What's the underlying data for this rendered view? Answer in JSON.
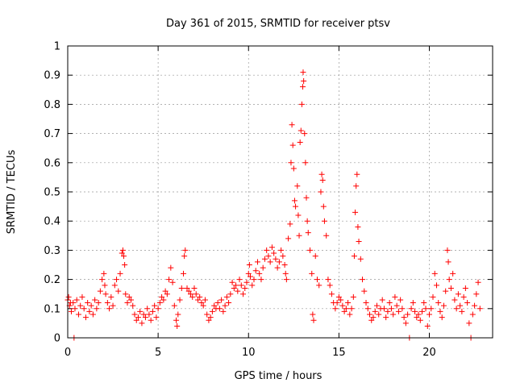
{
  "chart_data": {
    "type": "scatter",
    "title": "Day 361 of 2015, SRMTID for receiver ptsv",
    "xlabel": "GPS time / hours",
    "ylabel": "SRMTID / TECUs",
    "xlim": [
      0,
      23.5
    ],
    "ylim": [
      0,
      1
    ],
    "x_ticks": [
      0,
      5,
      10,
      15,
      20
    ],
    "x_tick_labels": [
      "0",
      "5",
      "10",
      "15",
      "20"
    ],
    "y_ticks": [
      0,
      0.1,
      0.2,
      0.3,
      0.4,
      0.5,
      0.6,
      0.7,
      0.8,
      0.9,
      1
    ],
    "y_tick_labels": [
      "0",
      "0.1",
      "0.2",
      "0.3",
      "0.4",
      "0.5",
      "0.6",
      "0.7",
      "0.8",
      "0.9",
      "1"
    ],
    "grid": true,
    "marker": "+",
    "marker_color": "#ff0000",
    "series": [
      {
        "name": "SRMTID",
        "points": [
          [
            0.0,
            0.13
          ],
          [
            0.05,
            0.14
          ],
          [
            0.1,
            0.11
          ],
          [
            0.15,
            0.12
          ],
          [
            0.2,
            0.09
          ],
          [
            0.3,
            0.12
          ],
          [
            0.35,
            0.0
          ],
          [
            0.4,
            0.1
          ],
          [
            0.5,
            0.13
          ],
          [
            0.6,
            0.08
          ],
          [
            0.7,
            0.11
          ],
          [
            0.8,
            0.14
          ],
          [
            0.9,
            0.1
          ],
          [
            1.0,
            0.07
          ],
          [
            1.1,
            0.12
          ],
          [
            1.2,
            0.09
          ],
          [
            1.3,
            0.11
          ],
          [
            1.4,
            0.08
          ],
          [
            1.5,
            0.13
          ],
          [
            1.6,
            0.1
          ],
          [
            1.7,
            0.12
          ],
          [
            1.8,
            0.16
          ],
          [
            1.9,
            0.2
          ],
          [
            2.0,
            0.22
          ],
          [
            2.05,
            0.18
          ],
          [
            2.1,
            0.15
          ],
          [
            2.2,
            0.12
          ],
          [
            2.3,
            0.1
          ],
          [
            2.4,
            0.14
          ],
          [
            2.5,
            0.11
          ],
          [
            2.6,
            0.18
          ],
          [
            2.7,
            0.2
          ],
          [
            2.8,
            0.16
          ],
          [
            2.9,
            0.22
          ],
          [
            3.0,
            0.29
          ],
          [
            3.05,
            0.3
          ],
          [
            3.1,
            0.28
          ],
          [
            3.15,
            0.25
          ],
          [
            3.2,
            0.15
          ],
          [
            3.3,
            0.12
          ],
          [
            3.4,
            0.14
          ],
          [
            3.5,
            0.13
          ],
          [
            3.6,
            0.11
          ],
          [
            3.7,
            0.08
          ],
          [
            3.8,
            0.06
          ],
          [
            3.9,
            0.07
          ],
          [
            4.0,
            0.09
          ],
          [
            4.1,
            0.05
          ],
          [
            4.2,
            0.08
          ],
          [
            4.3,
            0.07
          ],
          [
            4.4,
            0.1
          ],
          [
            4.5,
            0.08
          ],
          [
            4.6,
            0.06
          ],
          [
            4.7,
            0.09
          ],
          [
            4.8,
            0.11
          ],
          [
            4.9,
            0.07
          ],
          [
            5.0,
            0.1
          ],
          [
            5.1,
            0.12
          ],
          [
            5.2,
            0.14
          ],
          [
            5.3,
            0.13
          ],
          [
            5.4,
            0.16
          ],
          [
            5.5,
            0.15
          ],
          [
            5.6,
            0.2
          ],
          [
            5.7,
            0.24
          ],
          [
            5.8,
            0.19
          ],
          [
            5.9,
            0.11
          ],
          [
            6.0,
            0.06
          ],
          [
            6.05,
            0.04
          ],
          [
            6.1,
            0.08
          ],
          [
            6.2,
            0.13
          ],
          [
            6.3,
            0.17
          ],
          [
            6.4,
            0.22
          ],
          [
            6.45,
            0.28
          ],
          [
            6.5,
            0.3
          ],
          [
            6.6,
            0.17
          ],
          [
            6.7,
            0.16
          ],
          [
            6.8,
            0.15
          ],
          [
            6.9,
            0.14
          ],
          [
            7.0,
            0.17
          ],
          [
            7.1,
            0.15
          ],
          [
            7.2,
            0.13
          ],
          [
            7.3,
            0.14
          ],
          [
            7.4,
            0.12
          ],
          [
            7.5,
            0.11
          ],
          [
            7.6,
            0.13
          ],
          [
            7.7,
            0.08
          ],
          [
            7.8,
            0.06
          ],
          [
            7.9,
            0.07
          ],
          [
            8.0,
            0.09
          ],
          [
            8.1,
            0.11
          ],
          [
            8.2,
            0.1
          ],
          [
            8.3,
            0.12
          ],
          [
            8.4,
            0.1
          ],
          [
            8.5,
            0.13
          ],
          [
            8.6,
            0.09
          ],
          [
            8.7,
            0.11
          ],
          [
            8.8,
            0.14
          ],
          [
            8.9,
            0.12
          ],
          [
            9.0,
            0.15
          ],
          [
            9.1,
            0.19
          ],
          [
            9.2,
            0.17
          ],
          [
            9.3,
            0.18
          ],
          [
            9.4,
            0.16
          ],
          [
            9.5,
            0.2
          ],
          [
            9.6,
            0.18
          ],
          [
            9.7,
            0.15
          ],
          [
            9.8,
            0.17
          ],
          [
            9.9,
            0.19
          ],
          [
            10.0,
            0.22
          ],
          [
            10.05,
            0.25
          ],
          [
            10.1,
            0.21
          ],
          [
            10.2,
            0.18
          ],
          [
            10.3,
            0.2
          ],
          [
            10.4,
            0.23
          ],
          [
            10.5,
            0.26
          ],
          [
            10.6,
            0.22
          ],
          [
            10.7,
            0.2
          ],
          [
            10.8,
            0.24
          ],
          [
            10.9,
            0.27
          ],
          [
            11.0,
            0.3
          ],
          [
            11.1,
            0.28
          ],
          [
            11.2,
            0.26
          ],
          [
            11.3,
            0.31
          ],
          [
            11.4,
            0.29
          ],
          [
            11.5,
            0.27
          ],
          [
            11.6,
            0.24
          ],
          [
            11.7,
            0.26
          ],
          [
            11.8,
            0.3
          ],
          [
            11.9,
            0.28
          ],
          [
            12.0,
            0.25
          ],
          [
            12.05,
            0.22
          ],
          [
            12.1,
            0.2
          ],
          [
            12.2,
            0.34
          ],
          [
            12.3,
            0.39
          ],
          [
            12.35,
            0.6
          ],
          [
            12.4,
            0.73
          ],
          [
            12.45,
            0.66
          ],
          [
            12.5,
            0.58
          ],
          [
            12.55,
            0.47
          ],
          [
            12.6,
            0.45
          ],
          [
            12.7,
            0.52
          ],
          [
            12.75,
            0.42
          ],
          [
            12.8,
            0.35
          ],
          [
            12.85,
            0.67
          ],
          [
            12.9,
            0.71
          ],
          [
            12.95,
            0.8
          ],
          [
            13.0,
            0.86
          ],
          [
            13.02,
            0.91
          ],
          [
            13.05,
            0.88
          ],
          [
            13.1,
            0.7
          ],
          [
            13.15,
            0.6
          ],
          [
            13.2,
            0.48
          ],
          [
            13.25,
            0.4
          ],
          [
            13.3,
            0.36
          ],
          [
            13.4,
            0.3
          ],
          [
            13.5,
            0.22
          ],
          [
            13.55,
            0.08
          ],
          [
            13.6,
            0.06
          ],
          [
            13.7,
            0.28
          ],
          [
            13.8,
            0.2
          ],
          [
            13.9,
            0.18
          ],
          [
            14.0,
            0.5
          ],
          [
            14.05,
            0.56
          ],
          [
            14.1,
            0.54
          ],
          [
            14.15,
            0.45
          ],
          [
            14.2,
            0.4
          ],
          [
            14.3,
            0.35
          ],
          [
            14.4,
            0.2
          ],
          [
            14.5,
            0.18
          ],
          [
            14.6,
            0.15
          ],
          [
            14.7,
            0.12
          ],
          [
            14.8,
            0.1
          ],
          [
            14.9,
            0.12
          ],
          [
            15.0,
            0.14
          ],
          [
            15.1,
            0.13
          ],
          [
            15.2,
            0.11
          ],
          [
            15.3,
            0.09
          ],
          [
            15.4,
            0.1
          ],
          [
            15.5,
            0.12
          ],
          [
            15.6,
            0.08
          ],
          [
            15.7,
            0.1
          ],
          [
            15.8,
            0.14
          ],
          [
            15.85,
            0.28
          ],
          [
            15.9,
            0.43
          ],
          [
            15.95,
            0.52
          ],
          [
            16.0,
            0.56
          ],
          [
            16.05,
            0.38
          ],
          [
            16.1,
            0.33
          ],
          [
            16.2,
            0.27
          ],
          [
            16.3,
            0.2
          ],
          [
            16.4,
            0.16
          ],
          [
            16.5,
            0.12
          ],
          [
            16.6,
            0.1
          ],
          [
            16.7,
            0.08
          ],
          [
            16.8,
            0.06
          ],
          [
            16.9,
            0.07
          ],
          [
            17.0,
            0.09
          ],
          [
            17.1,
            0.11
          ],
          [
            17.2,
            0.08
          ],
          [
            17.3,
            0.1
          ],
          [
            17.4,
            0.13
          ],
          [
            17.5,
            0.1
          ],
          [
            17.6,
            0.07
          ],
          [
            17.7,
            0.09
          ],
          [
            17.8,
            0.12
          ],
          [
            17.9,
            0.1
          ],
          [
            18.0,
            0.08
          ],
          [
            18.1,
            0.14
          ],
          [
            18.2,
            0.11
          ],
          [
            18.3,
            0.09
          ],
          [
            18.4,
            0.13
          ],
          [
            18.5,
            0.1
          ],
          [
            18.6,
            0.07
          ],
          [
            18.7,
            0.05
          ],
          [
            18.8,
            0.08
          ],
          [
            18.9,
            0.0
          ],
          [
            19.0,
            0.1
          ],
          [
            19.1,
            0.12
          ],
          [
            19.2,
            0.09
          ],
          [
            19.3,
            0.07
          ],
          [
            19.4,
            0.08
          ],
          [
            19.5,
            0.06
          ],
          [
            19.6,
            0.09
          ],
          [
            19.7,
            0.12
          ],
          [
            19.8,
            0.1
          ],
          [
            19.9,
            0.04
          ],
          [
            20.0,
            0.08
          ],
          [
            20.1,
            0.1
          ],
          [
            20.2,
            0.14
          ],
          [
            20.3,
            0.22
          ],
          [
            20.4,
            0.18
          ],
          [
            20.5,
            0.12
          ],
          [
            20.6,
            0.09
          ],
          [
            20.7,
            0.07
          ],
          [
            20.8,
            0.11
          ],
          [
            20.9,
            0.16
          ],
          [
            21.0,
            0.3
          ],
          [
            21.05,
            0.26
          ],
          [
            21.1,
            0.2
          ],
          [
            21.2,
            0.17
          ],
          [
            21.3,
            0.22
          ],
          [
            21.4,
            0.13
          ],
          [
            21.5,
            0.1
          ],
          [
            21.6,
            0.15
          ],
          [
            21.7,
            0.11
          ],
          [
            21.8,
            0.09
          ],
          [
            21.9,
            0.14
          ],
          [
            22.0,
            0.17
          ],
          [
            22.1,
            0.12
          ],
          [
            22.2,
            0.05
          ],
          [
            22.3,
            0.0
          ],
          [
            22.4,
            0.08
          ],
          [
            22.5,
            0.11
          ],
          [
            22.6,
            0.15
          ],
          [
            22.7,
            0.19
          ],
          [
            22.8,
            0.1
          ]
        ]
      }
    ]
  }
}
